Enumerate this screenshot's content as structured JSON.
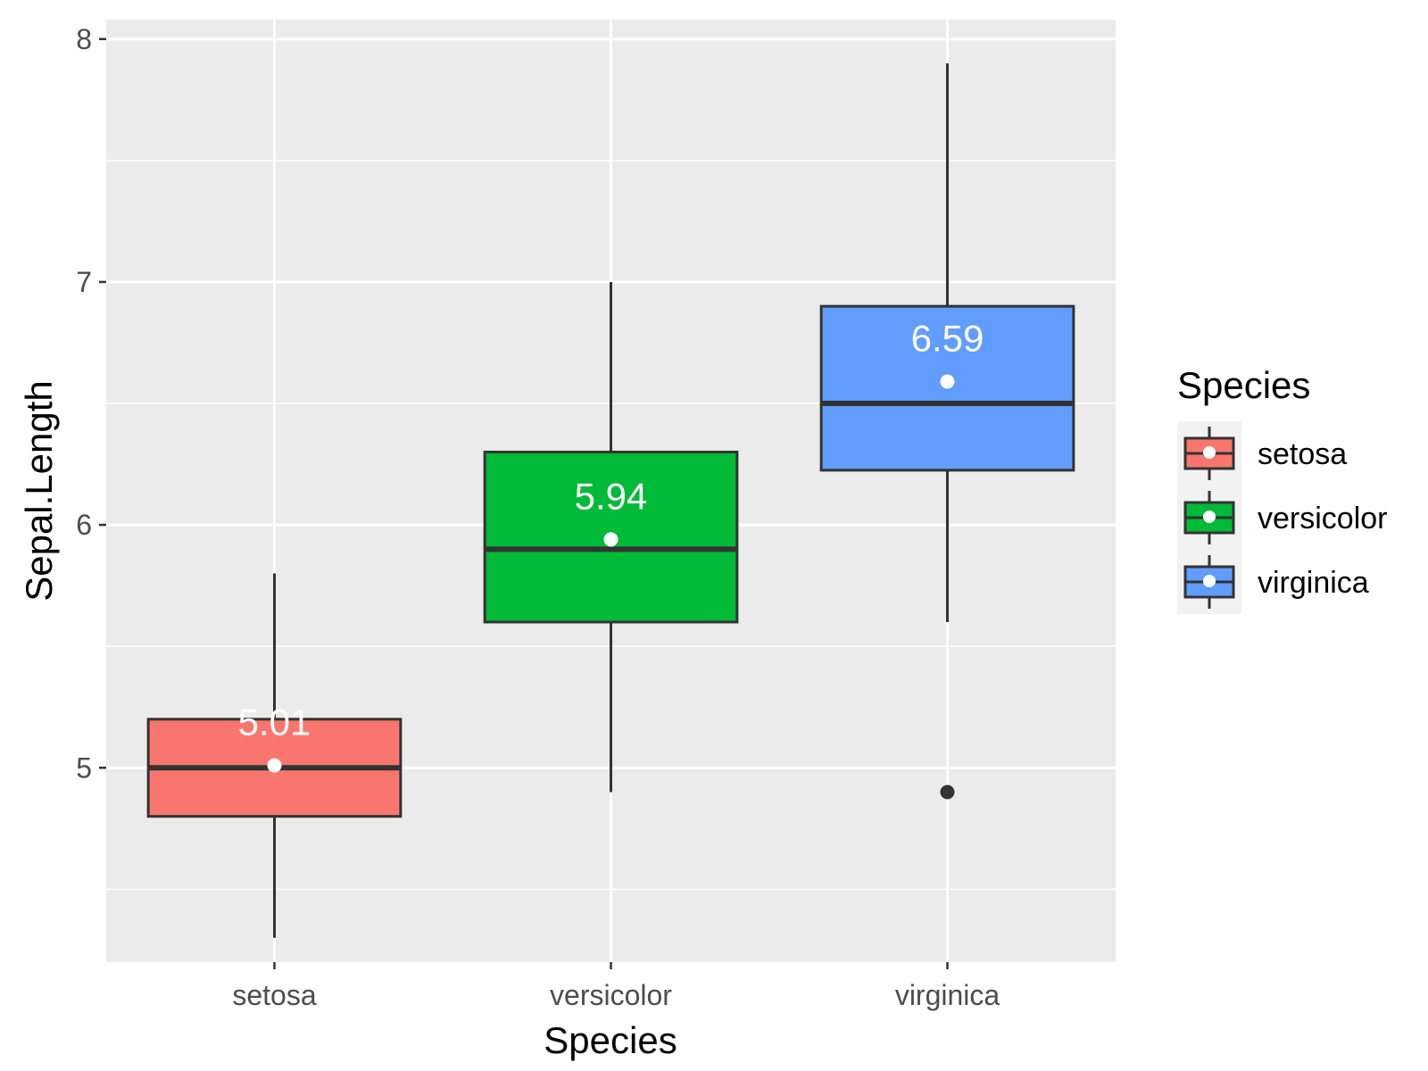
{
  "chart_data": {
    "type": "boxplot",
    "title": "",
    "xlabel": "Species",
    "ylabel": "Sepal.Length",
    "ylim": [
      4.2,
      8.08
    ],
    "yticks": [
      5,
      6,
      7,
      8
    ],
    "grid": true,
    "legend": {
      "title": "Species",
      "placement": "right"
    },
    "categories": [
      "setosa",
      "versicolor",
      "virginica"
    ],
    "series": [
      {
        "name": "setosa",
        "color": "#F8766D",
        "min": 4.3,
        "q1": 4.8,
        "median": 5.0,
        "q3": 5.2,
        "max": 5.8,
        "mean": 5.01,
        "mean_label": "5.01",
        "outliers": []
      },
      {
        "name": "versicolor",
        "color": "#00BA38",
        "min": 4.9,
        "q1": 5.6,
        "median": 5.9,
        "q3": 6.3,
        "max": 7.0,
        "mean": 5.94,
        "mean_label": "5.94",
        "outliers": []
      },
      {
        "name": "virginica",
        "color": "#619CFF",
        "min": 5.6,
        "q1": 6.225,
        "median": 6.5,
        "q3": 6.9,
        "max": 7.9,
        "mean": 6.59,
        "mean_label": "6.59",
        "outliers": [
          4.9
        ]
      }
    ]
  }
}
